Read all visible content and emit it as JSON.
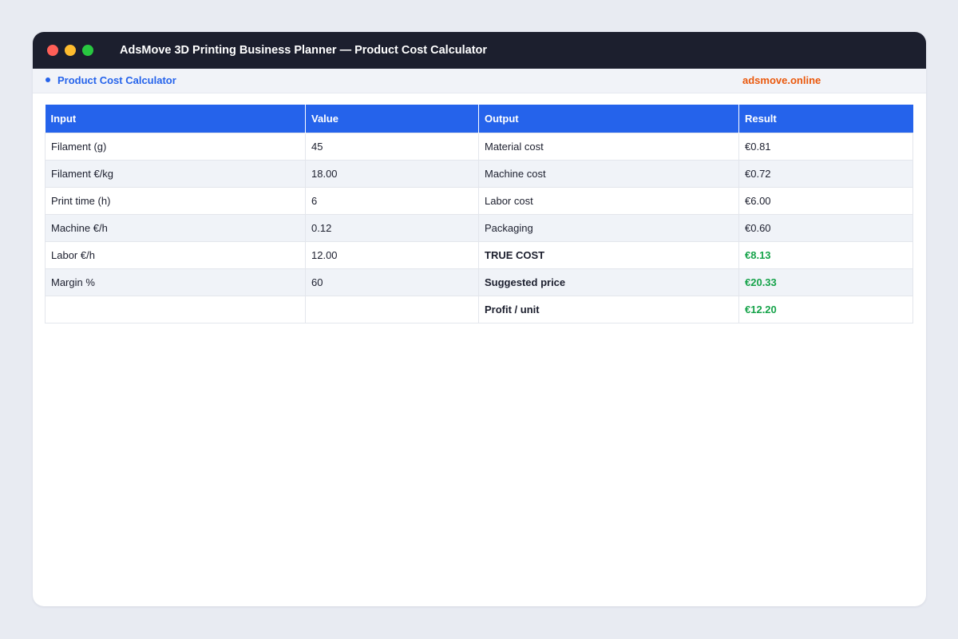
{
  "window": {
    "title": "AdsMove 3D Printing Business Planner  —  Product Cost Calculator",
    "controls": [
      "close",
      "minimize",
      "maximize"
    ]
  },
  "tabbar": {
    "active_tab": "Product Cost Calculator",
    "brand": "adsmove.online"
  },
  "table": {
    "headers": [
      "Input",
      "Value",
      "Output",
      "Result"
    ],
    "rows": [
      {
        "input": "Filament (g)",
        "value": "45",
        "output": "Material cost",
        "result": "€0.81"
      },
      {
        "input": "Filament €/kg",
        "value": "18.00",
        "output": "Machine cost",
        "result": "€0.72"
      },
      {
        "input": "Print time (h)",
        "value": "6",
        "output": "Labor cost",
        "result": "€6.00"
      },
      {
        "input": "Machine €/h",
        "value": "0.12",
        "output": "Packaging",
        "result": "€0.60"
      },
      {
        "input": "Labor €/h",
        "value": "12.00",
        "output": "TRUE COST",
        "result": "€8.13"
      },
      {
        "input": "Margin %",
        "value": "60",
        "output": "Suggested price",
        "result": "€20.33"
      },
      {
        "input": "",
        "value": "",
        "output": "Profit / unit",
        "result": "€12.20"
      }
    ]
  },
  "colors": {
    "titlebar": "#1c1f2e",
    "accent": "#2563eb",
    "brand": "#ea580c",
    "positive": "#16a34a"
  }
}
